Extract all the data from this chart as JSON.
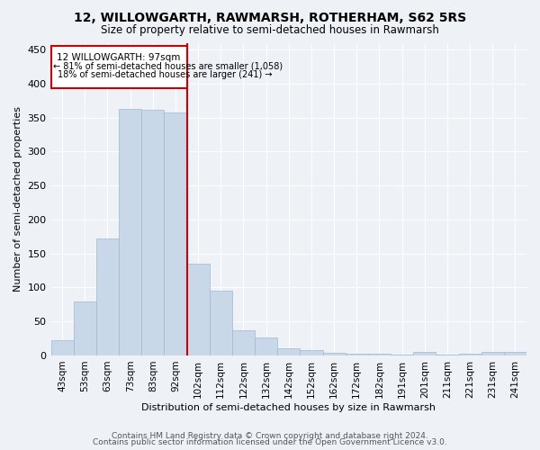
{
  "title1": "12, WILLOWGARTH, RAWMARSH, ROTHERHAM, S62 5RS",
  "title2": "Size of property relative to semi-detached houses in Rawmarsh",
  "xlabel": "Distribution of semi-detached houses by size in Rawmarsh",
  "ylabel": "Number of semi-detached properties",
  "categories": [
    "43sqm",
    "53sqm",
    "63sqm",
    "73sqm",
    "83sqm",
    "92sqm",
    "102sqm",
    "112sqm",
    "122sqm",
    "132sqm",
    "142sqm",
    "152sqm",
    "162sqm",
    "172sqm",
    "182sqm",
    "191sqm",
    "201sqm",
    "211sqm",
    "221sqm",
    "231sqm",
    "241sqm"
  ],
  "values": [
    22,
    80,
    172,
    363,
    362,
    358,
    135,
    95,
    37,
    26,
    10,
    8,
    4,
    3,
    2,
    1,
    5,
    1,
    3,
    5,
    5
  ],
  "bar_color": "#c8d8e8",
  "bar_edge_color": "#a0b8d0",
  "marker_label": "12 WILLOWGARTH: 97sqm",
  "annotation_line1": "← 81% of semi-detached houses are smaller (1,058)",
  "annotation_line2": "18% of semi-detached houses are larger (241) →",
  "marker_color": "#cc0000",
  "background_color": "#eef2f7",
  "plot_bg_color": "#eef2f7",
  "grid_color": "#ffffff",
  "ylim": [
    0,
    460
  ],
  "yticks": [
    0,
    50,
    100,
    150,
    200,
    250,
    300,
    350,
    400,
    450
  ],
  "footer1": "Contains HM Land Registry data © Crown copyright and database right 2024.",
  "footer2": "Contains public sector information licensed under the Open Government Licence v3.0."
}
